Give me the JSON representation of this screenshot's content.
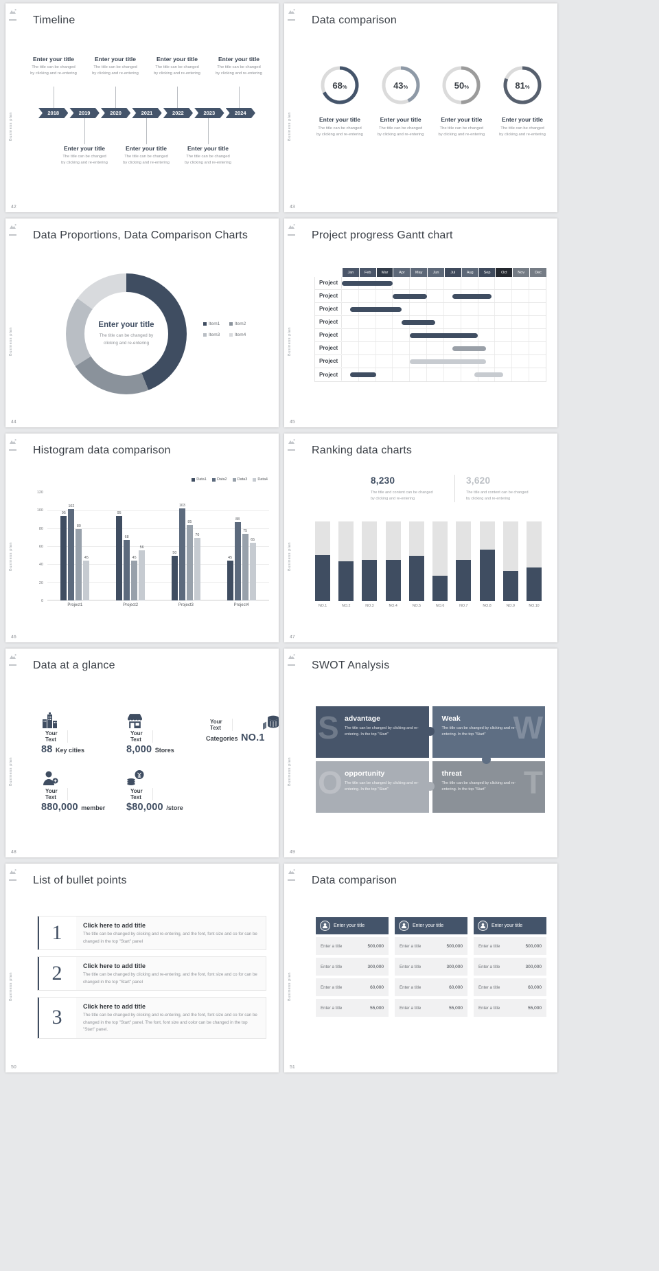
{
  "page": {
    "background": "#e7e8ea"
  },
  "common": {
    "brand_vertical": "Business plan",
    "percent_sign": "%"
  },
  "slides": {
    "timeline": {
      "number": "42",
      "title": "Timeline",
      "entry_title": "Enter your title",
      "entry_sub1": "The title can be changed",
      "entry_sub2": "by clicking and re-entering",
      "years": [
        "2018",
        "2019",
        "2020",
        "2021",
        "2022",
        "2023",
        "2024"
      ],
      "bar_color": "#44546A"
    },
    "rings": {
      "number": "43",
      "title": "Data comparison",
      "entry_title": "Enter your title",
      "entry_sub1": "The title can be changed",
      "entry_sub2": "by clicking and re-entering",
      "chart_data": {
        "type": "donut-gauge-set",
        "items": [
          {
            "label": "68",
            "value": 68,
            "color": "#44546A",
            "track": "#DBDBDB"
          },
          {
            "label": "43",
            "value": 43,
            "color": "#8E99A6",
            "track": "#DBDBDB"
          },
          {
            "label": "50",
            "value": 50,
            "color": "#9B9B9B",
            "track": "#DBDBDB"
          },
          {
            "label": "81",
            "value": 81,
            "color": "#57606E",
            "track": "#DBDBDB"
          }
        ]
      }
    },
    "proportions": {
      "number": "44",
      "title": "Data Proportions, Data Comparison Charts",
      "center_title": "Enter your title",
      "center_sub1": "The title can be changed by",
      "center_sub2": "clicking and re-entering",
      "chart_data": {
        "type": "pie",
        "segments": [
          {
            "label": "Item1",
            "value": 44,
            "color": "#3F4D61"
          },
          {
            "label": "Item2",
            "value": 22,
            "color": "#8A929B"
          },
          {
            "label": "Item3",
            "value": 19,
            "color": "#B9BEC4"
          },
          {
            "label": "Item4",
            "value": 15,
            "color": "#D8DADD"
          }
        ]
      }
    },
    "gantt": {
      "number": "45",
      "title": "Project progress Gantt chart",
      "row_label": "Project",
      "months": [
        "Jan",
        "Feb",
        "Mar",
        "Apr",
        "May",
        "Jun",
        "Jul",
        "Aug",
        "Sep",
        "Oct",
        "Nov",
        "Dec"
      ],
      "month_colors": [
        "#4A5568",
        "#4A5568",
        "#323C4A",
        "#5D6878",
        "#5D6878",
        "#5D6878",
        "#3F4A5C",
        "#5D6878",
        "#3F4A5C",
        "#23272E",
        "#757C85",
        "#757C85"
      ],
      "bar_colors": {
        "navy": "#3F4D61",
        "gray": "#9AA0A8",
        "light": "#C7CBD0"
      },
      "rows": [
        {
          "bars": [
            {
              "s": 0,
              "w": 3,
              "c": "navy"
            }
          ]
        },
        {
          "bars": [
            {
              "s": 3,
              "w": 2,
              "c": "navy"
            },
            {
              "s": 6.5,
              "w": 2.3,
              "c": "navy"
            }
          ]
        },
        {
          "bars": [
            {
              "s": 0.5,
              "w": 3,
              "c": "navy"
            }
          ]
        },
        {
          "bars": [
            {
              "s": 3.5,
              "w": 2,
              "c": "navy"
            }
          ]
        },
        {
          "bars": [
            {
              "s": 4,
              "w": 4,
              "c": "navy"
            }
          ]
        },
        {
          "bars": [
            {
              "s": 6.5,
              "w": 2,
              "c": "gray"
            }
          ]
        },
        {
          "bars": [
            {
              "s": 4,
              "w": 4.5,
              "c": "light"
            }
          ]
        },
        {
          "bars": [
            {
              "s": 0.5,
              "w": 1.5,
              "c": "navy"
            },
            {
              "s": 7.8,
              "w": 1.7,
              "c": "light"
            }
          ]
        }
      ]
    },
    "histogram": {
      "number": "46",
      "title": "Histogram data comparison",
      "chart_data": {
        "type": "bar",
        "categories": [
          "Project1",
          "Project2",
          "Project3",
          "Project4"
        ],
        "series": [
          {
            "name": "Data1",
            "color": "#3F4D61",
            "values": [
              95,
              95,
              50,
              45
            ]
          },
          {
            "name": "Data2",
            "color": "#5C6A7D",
            "values": [
              102,
              68,
              103,
              88
            ]
          },
          {
            "name": "Data3",
            "color": "#98A1AB",
            "values": [
              80,
              45,
              85,
              75
            ]
          },
          {
            "name": "Data4",
            "color": "#C6CBD1",
            "values": [
              45,
              56,
              70,
              65
            ]
          }
        ],
        "ymax": 120,
        "yticks": [
          0,
          20,
          40,
          60,
          80,
          100,
          120
        ]
      }
    },
    "ranking": {
      "number": "47",
      "title": "Ranking data charts",
      "stat1": "8,230",
      "stat2": "3,620",
      "stat_sub1": "The title and content can be changed",
      "stat_sub2": "by clicking and re-entering",
      "chart_data": {
        "type": "stacked-bar",
        "categories": [
          "NO.1",
          "NO.2",
          "NO.3",
          "NO.4",
          "NO.5",
          "NO.6",
          "NO.7",
          "NO.8",
          "NO.9",
          "NO.10"
        ],
        "values": [
          58,
          50,
          52,
          52,
          57,
          32,
          52,
          65,
          38,
          42
        ],
        "ymax": 100,
        "bar_color": "#3F4D61",
        "track_color": "#E3E3E3"
      }
    },
    "glance": {
      "number": "48",
      "title": "Data at a glance",
      "label": "Your Text",
      "item1": {
        "value": "88",
        "unit": "Key cities"
      },
      "item2": {
        "value": "8,000",
        "unit": "Stores"
      },
      "item3": {
        "prefix": "Categories",
        "value": "NO.1"
      },
      "item4": {
        "value": "880,000",
        "unit": "member"
      },
      "item5": {
        "value": "$80,000",
        "unit": "/store"
      }
    },
    "swot": {
      "number": "49",
      "title": "SWOT Analysis",
      "tiles": [
        {
          "letter": "S",
          "heading": "advantage",
          "body": "The title can be changed by clicking and re-entering. In the top \"Start\"",
          "color": "#47556A"
        },
        {
          "letter": "W",
          "heading": "Weak",
          "body": "The title can be changed by clicking and re-entering. In the top \"Start\"",
          "color": "#5E6E83"
        },
        {
          "letter": "O",
          "heading": "opportunity",
          "body": "The title can be changed by clicking and re-entering. In the top \"Start\"",
          "color": "#A9AEB5"
        },
        {
          "letter": "T",
          "heading": "threat",
          "body": "The title can be changed by clicking and re-entering. In the top \"Start\"",
          "color": "#8B9198"
        }
      ]
    },
    "bullets": {
      "number": "50",
      "title": "List of bullet points",
      "items": [
        {
          "num": "1",
          "heading": "Click here to add title",
          "body": "The title can be changed by clicking and re-entering, and the font, font size and co for can be changed in the top \"Start\" panel"
        },
        {
          "num": "2",
          "heading": "Click here to add title",
          "body": "The title can be changed by clicking and re-entering, and the font, font size and co for can be changed in the top \"Start\" panel"
        },
        {
          "num": "3",
          "heading": "Click here to add title",
          "body": "The title can be changed by clicking and re-entering, and the font, font size and co for can be changed in the top \"Start\" panel. The font, font size and color can be changed in the top \"Start\" panel."
        }
      ]
    },
    "tables": {
      "number": "51",
      "title": "Data comparison",
      "header": "Enter your title",
      "rows": [
        {
          "label": "Enter a title",
          "value": "500,000"
        },
        {
          "label": "Enter a title",
          "value": "300,000"
        },
        {
          "label": "Enter a title",
          "value": "60,000"
        },
        {
          "label": "Enter a title",
          "value": "55,000"
        }
      ]
    }
  }
}
